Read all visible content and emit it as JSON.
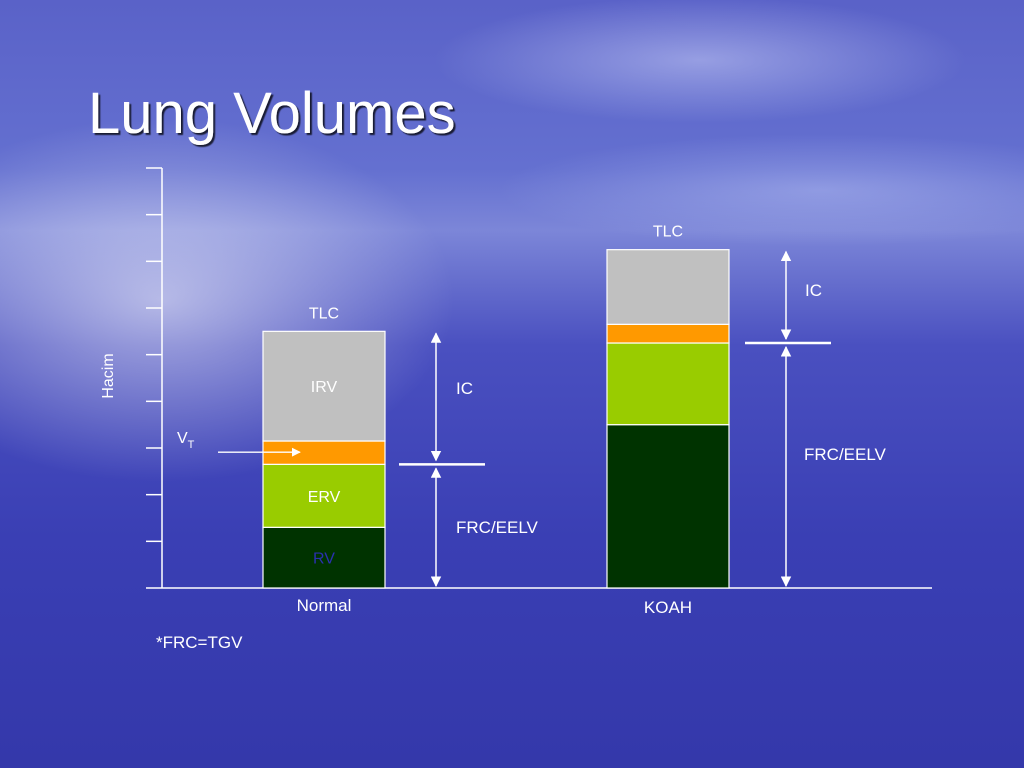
{
  "slide": {
    "title": "Lung Volumes",
    "footnote": "*FRC=TGV",
    "colors": {
      "irv": "#c0c0c0",
      "vt": "#ff9900",
      "erv": "#99cc00",
      "rv": "#003300",
      "rv_label": "#2a30b0",
      "text": "#ffffff"
    }
  },
  "chart_data": {
    "type": "bar",
    "title": "Lung Volumes",
    "ylabel": "Hacim",
    "xlabel": "",
    "ylim": [
      0,
      9
    ],
    "grid": false,
    "categories": [
      "Normal",
      "KOAH"
    ],
    "stack_order": [
      "RV",
      "ERV",
      "VT",
      "IRV"
    ],
    "series": [
      {
        "name": "RV",
        "label": "RV",
        "color": "#003300",
        "values": [
          1.3,
          3.5
        ]
      },
      {
        "name": "ERV",
        "label": "ERV",
        "color": "#99cc00",
        "values": [
          1.35,
          1.75
        ]
      },
      {
        "name": "VT",
        "label": "",
        "color": "#ff9900",
        "values": [
          0.5,
          0.4
        ]
      },
      {
        "name": "IRV",
        "label": "IRV",
        "color": "#c0c0c0",
        "values": [
          2.35,
          1.6
        ]
      }
    ],
    "bar_top_labels": [
      "TLC",
      "TLC"
    ],
    "vt_pointer_label": {
      "main": "V",
      "sub": "T"
    },
    "brackets": [
      {
        "bar": 0,
        "upper_label": "IC",
        "lower_label": "FRC/EELV"
      },
      {
        "bar": 1,
        "upper_label": "IC",
        "lower_label": "FRC/EELV"
      }
    ]
  }
}
